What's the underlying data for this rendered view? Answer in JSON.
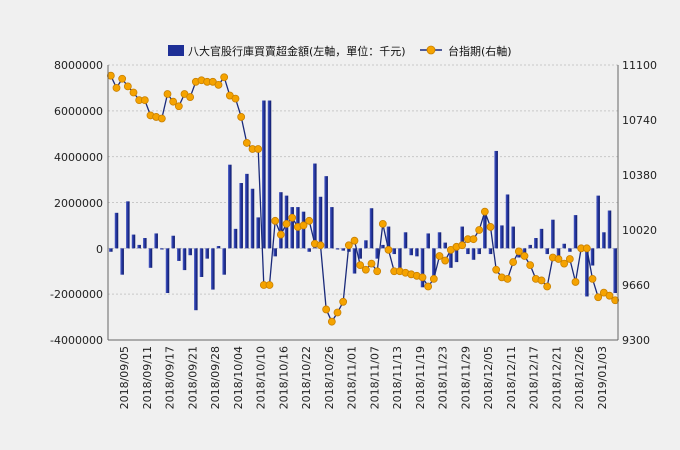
{
  "chart_data": {
    "type": "bar+line",
    "legend": [
      {
        "name": "八大官股行庫買賣超金額(左軸，單位：千元)",
        "kind": "bar",
        "color": "#1e2f96"
      },
      {
        "name": "台指期(右軸)",
        "kind": "line",
        "color": "#f5a300"
      }
    ],
    "left_axis": {
      "min": -4000000,
      "max": 8000000,
      "ticks": [
        "8000000",
        "6000000",
        "4000000",
        "2000000",
        "0",
        "-2000000",
        "-4000000"
      ]
    },
    "right_axis": {
      "min": 9300,
      "max": 11100,
      "ticks": [
        "11100",
        "10740",
        "10380",
        "10020",
        "9660",
        "9300"
      ]
    },
    "x_tick_labels": [
      "2018/09/05",
      "2018/09/11",
      "2018/09/17",
      "2018/09/21",
      "2018/09/28",
      "2018/10/04",
      "2018/10/10",
      "2018/10/16",
      "2018/10/22",
      "2018/10/26",
      "2018/11/01",
      "2018/11/07",
      "2018/11/13",
      "2018/11/19",
      "2018/11/23",
      "2018/11/29",
      "2018/12/05",
      "2018/12/11",
      "2018/12/17",
      "2018/12/21",
      "2018/12/26",
      "2019/01/03"
    ],
    "bars": [
      -150000,
      1550000,
      -1150000,
      2050000,
      600000,
      150000,
      450000,
      -850000,
      650000,
      -50000,
      -1950000,
      550000,
      -550000,
      -950000,
      -300000,
      -2700000,
      -1250000,
      -450000,
      -1800000,
      100000,
      -1150000,
      3650000,
      850000,
      2850000,
      3250000,
      2600000,
      1350000,
      6450000,
      6450000,
      -350000,
      2450000,
      2300000,
      1800000,
      1800000,
      1600000,
      -150000,
      3700000,
      2250000,
      3150000,
      1800000,
      -50000,
      -100000,
      -150000,
      -1100000,
      -450000,
      350000,
      1750000,
      -450000,
      150000,
      950000,
      -250000,
      -1050000,
      700000,
      -300000,
      -350000,
      -1700000,
      650000,
      -1200000,
      700000,
      250000,
      -850000,
      -600000,
      950000,
      -250000,
      -500000,
      -250000,
      1550000,
      -250000,
      4250000,
      1000000,
      2350000,
      950000,
      -400000,
      -350000,
      150000,
      450000,
      850000,
      -250000,
      1250000,
      -600000,
      200000,
      -150000,
      1450000,
      -50000,
      -2100000,
      -750000,
      2300000,
      700000,
      1650000,
      -1950000
    ],
    "line": [
      11030,
      10950,
      11010,
      10960,
      10920,
      10870,
      10870,
      10770,
      10760,
      10750,
      10910,
      10860,
      10830,
      10910,
      10890,
      10990,
      11000,
      10990,
      10990,
      10970,
      11020,
      10900,
      10880,
      10760,
      10590,
      10550,
      10550,
      9660,
      9660,
      10080,
      9990,
      10060,
      10100,
      10040,
      10050,
      10080,
      9930,
      9920,
      9500,
      9420,
      9480,
      9550,
      9920,
      9950,
      9790,
      9760,
      9800,
      9750,
      10060,
      9890,
      9750,
      9750,
      9740,
      9730,
      9720,
      9710,
      9650,
      9700,
      9850,
      9820,
      9890,
      9910,
      9920,
      9960,
      9960,
      10020,
      10140,
      10040,
      9760,
      9710,
      9700,
      9810,
      9880,
      9850,
      9790,
      9700,
      9690,
      9650,
      9840,
      9830,
      9800,
      9830,
      9680,
      9900,
      9900,
      9700,
      9580,
      9610,
      9590,
      9560
    ]
  }
}
